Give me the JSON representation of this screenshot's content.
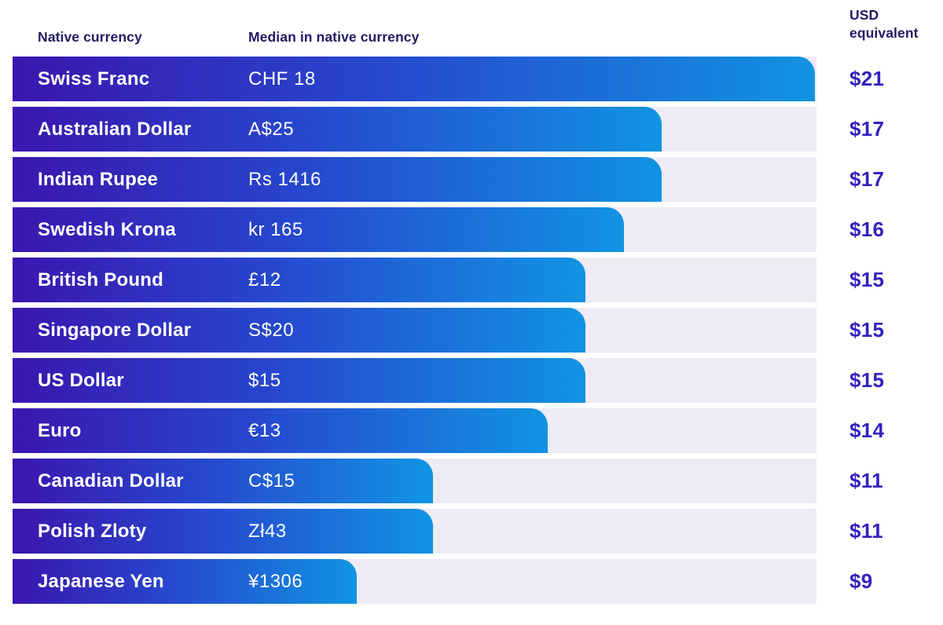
{
  "header": {
    "col_currency": "Native currency",
    "col_median": "Median in native currency",
    "col_usd": "USD equivalent"
  },
  "colors": {
    "page_bg": "#FFFFFF",
    "bar_gradient_start": "#3A16AE",
    "bar_gradient_mid": "#2747CE",
    "bar_gradient_end": "#1194E2",
    "track": "#EEEBF5",
    "header_text": "#201B63",
    "usd_text": "#3221BE",
    "bar_text": "#FFFFFF"
  },
  "chart_data": {
    "type": "bar",
    "orientation": "horizontal",
    "title": "",
    "xlabel": "USD equivalent",
    "ylabel": "Native currency",
    "max_usd": 21,
    "axis_range": [
      0,
      21
    ],
    "grid": false,
    "legend": false,
    "rows": [
      {
        "currency": "Swiss Franc",
        "median_native": "CHF 18",
        "usd_label": "$21",
        "usd_value": 21
      },
      {
        "currency": "Australian Dollar",
        "median_native": "A$25",
        "usd_label": "$17",
        "usd_value": 17
      },
      {
        "currency": "Indian Rupee",
        "median_native": "Rs 1416",
        "usd_label": "$17",
        "usd_value": 17
      },
      {
        "currency": "Swedish Krona",
        "median_native": "kr 165",
        "usd_label": "$16",
        "usd_value": 16
      },
      {
        "currency": "British Pound",
        "median_native": "£12",
        "usd_label": "$15",
        "usd_value": 15
      },
      {
        "currency": "Singapore Dollar",
        "median_native": "S$20",
        "usd_label": "$15",
        "usd_value": 15
      },
      {
        "currency": "US Dollar",
        "median_native": "$15",
        "usd_label": "$15",
        "usd_value": 15
      },
      {
        "currency": "Euro",
        "median_native": "€13",
        "usd_label": "$14",
        "usd_value": 14
      },
      {
        "currency": "Canadian Dollar",
        "median_native": "C$15",
        "usd_label": "$11",
        "usd_value": 11
      },
      {
        "currency": "Polish Zloty",
        "median_native": "Zł43",
        "usd_label": "$11",
        "usd_value": 11
      },
      {
        "currency": "Japanese Yen",
        "median_native": "¥1306",
        "usd_label": "$9",
        "usd_value": 9
      }
    ]
  }
}
